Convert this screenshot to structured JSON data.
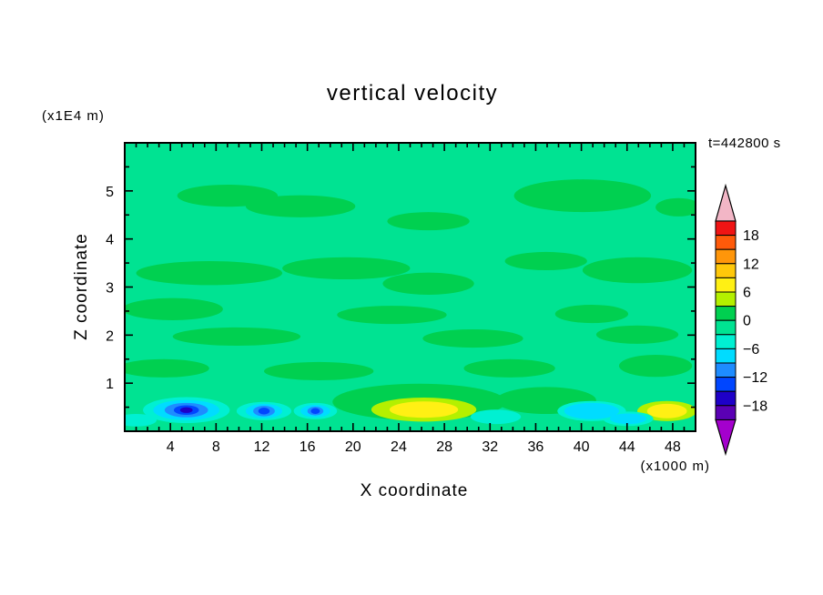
{
  "page": {
    "background": "#ffffff"
  },
  "chart_data": {
    "type": "contour",
    "title": "vertical velocity",
    "timestamp_label": "t=442800 s",
    "xlabel": "X coordinate",
    "x_unit_label": "(x1000 m)",
    "ylabel": "Z coordinate",
    "y_unit_label": "(x1E4 m)",
    "xlim": [
      0,
      50
    ],
    "ylim": [
      0,
      6
    ],
    "x_ticks": [
      4,
      8,
      12,
      16,
      20,
      24,
      28,
      32,
      36,
      40,
      44,
      48
    ],
    "x_minor_step": 1,
    "y_ticks": [
      1,
      2,
      3,
      4,
      5
    ],
    "y_minor_step": 0.5,
    "grid": false,
    "legend_position": "right-colorbar",
    "background_band_min": -3,
    "colorbar": {
      "labels": [
        18,
        12,
        6,
        0,
        -6,
        -12,
        -18
      ],
      "band_size": 3,
      "range": [
        -21,
        21
      ],
      "over_color": "#f2b6c6",
      "under_color": "#a400cd",
      "bands": [
        {
          "min": 18,
          "max": 21,
          "color": "#f01414"
        },
        {
          "min": 15,
          "max": 18,
          "color": "#ff5a0a"
        },
        {
          "min": 12,
          "max": 15,
          "color": "#ff960a"
        },
        {
          "min": 9,
          "max": 12,
          "color": "#ffc80a"
        },
        {
          "min": 6,
          "max": 9,
          "color": "#fff014"
        },
        {
          "min": 3,
          "max": 6,
          "color": "#b4f000"
        },
        {
          "min": 0,
          "max": 3,
          "color": "#00d050"
        },
        {
          "min": -3,
          "max": 0,
          "color": "#00e392"
        },
        {
          "min": -6,
          "max": -3,
          "color": "#00f0d2"
        },
        {
          "min": -9,
          "max": -6,
          "color": "#00dcff"
        },
        {
          "min": -12,
          "max": -9,
          "color": "#1e8cff"
        },
        {
          "min": -15,
          "max": -12,
          "color": "#0046ff"
        },
        {
          "min": -18,
          "max": -15,
          "color": "#1e00c8"
        },
        {
          "min": -21,
          "max": -18,
          "color": "#5a00b4"
        }
      ]
    },
    "features": [
      {
        "x": 9.0,
        "z": 4.9,
        "rx": 4.4,
        "ry": 0.23,
        "band_min": 0
      },
      {
        "x": 15.4,
        "z": 4.68,
        "rx": 4.8,
        "ry": 0.23,
        "band_min": 0
      },
      {
        "x": 26.6,
        "z": 4.37,
        "rx": 3.6,
        "ry": 0.19,
        "band_min": 0
      },
      {
        "x": 40.1,
        "z": 4.9,
        "rx": 6.0,
        "ry": 0.34,
        "band_min": 0
      },
      {
        "x": 48.5,
        "z": 4.66,
        "rx": 2.0,
        "ry": 0.19,
        "band_min": 0
      },
      {
        "x": 7.4,
        "z": 3.29,
        "rx": 6.4,
        "ry": 0.25,
        "band_min": 0
      },
      {
        "x": 19.4,
        "z": 3.39,
        "rx": 5.6,
        "ry": 0.23,
        "band_min": 0
      },
      {
        "x": 26.6,
        "z": 3.07,
        "rx": 4.0,
        "ry": 0.23,
        "band_min": 0
      },
      {
        "x": 36.9,
        "z": 3.54,
        "rx": 3.6,
        "ry": 0.19,
        "band_min": 0
      },
      {
        "x": 44.9,
        "z": 3.35,
        "rx": 4.8,
        "ry": 0.27,
        "band_min": 0
      },
      {
        "x": 4.2,
        "z": 2.54,
        "rx": 4.4,
        "ry": 0.23,
        "band_min": 0
      },
      {
        "x": 23.4,
        "z": 2.42,
        "rx": 4.8,
        "ry": 0.19,
        "band_min": 0
      },
      {
        "x": 40.9,
        "z": 2.44,
        "rx": 3.2,
        "ry": 0.19,
        "band_min": 0
      },
      {
        "x": 9.8,
        "z": 1.97,
        "rx": 5.6,
        "ry": 0.19,
        "band_min": 0
      },
      {
        "x": 30.5,
        "z": 1.93,
        "rx": 4.4,
        "ry": 0.19,
        "band_min": 0
      },
      {
        "x": 44.9,
        "z": 2.01,
        "rx": 3.6,
        "ry": 0.19,
        "band_min": 0
      },
      {
        "x": 3.4,
        "z": 1.31,
        "rx": 4.0,
        "ry": 0.19,
        "band_min": 0
      },
      {
        "x": 17.0,
        "z": 1.25,
        "rx": 4.8,
        "ry": 0.19,
        "band_min": 0
      },
      {
        "x": 33.7,
        "z": 1.31,
        "rx": 4.0,
        "ry": 0.19,
        "band_min": 0
      },
      {
        "x": 46.5,
        "z": 1.36,
        "rx": 3.2,
        "ry": 0.23,
        "band_min": 0
      },
      {
        "x": 25.8,
        "z": 0.61,
        "rx": 7.6,
        "ry": 0.38,
        "band_min": 0
      },
      {
        "x": 36.9,
        "z": 0.64,
        "rx": 4.4,
        "ry": 0.28,
        "band_min": 0
      },
      {
        "x": 26.2,
        "z": 0.45,
        "rx": 4.6,
        "ry": 0.25,
        "band_min": 3
      },
      {
        "x": 47.5,
        "z": 0.42,
        "rx": 2.6,
        "ry": 0.21,
        "band_min": 3
      },
      {
        "x": 26.2,
        "z": 0.45,
        "rx": 3.0,
        "ry": 0.17,
        "band_min": 6
      },
      {
        "x": 47.5,
        "z": 0.42,
        "rx": 1.75,
        "ry": 0.15,
        "band_min": 6
      },
      {
        "x": 5.4,
        "z": 0.44,
        "rx": 3.8,
        "ry": 0.27,
        "band_min": -6
      },
      {
        "x": 12.2,
        "z": 0.42,
        "rx": 2.4,
        "ry": 0.19,
        "band_min": -6
      },
      {
        "x": 16.7,
        "z": 0.42,
        "rx": 1.9,
        "ry": 0.17,
        "band_min": -6
      },
      {
        "x": 32.5,
        "z": 0.3,
        "rx": 2.2,
        "ry": 0.15,
        "band_min": -6
      },
      {
        "x": 40.9,
        "z": 0.42,
        "rx": 3.0,
        "ry": 0.21,
        "band_min": -6
      },
      {
        "x": 44.1,
        "z": 0.26,
        "rx": 2.2,
        "ry": 0.15,
        "band_min": -6
      },
      {
        "x": 1.0,
        "z": 0.23,
        "rx": 1.8,
        "ry": 0.13,
        "band_min": -6
      },
      {
        "x": 5.4,
        "z": 0.44,
        "rx": 2.9,
        "ry": 0.21,
        "band_min": -9
      },
      {
        "x": 12.2,
        "z": 0.42,
        "rx": 1.6,
        "ry": 0.15,
        "band_min": -9
      },
      {
        "x": 16.7,
        "z": 0.42,
        "rx": 1.3,
        "ry": 0.13,
        "band_min": -9
      },
      {
        "x": 40.9,
        "z": 0.42,
        "rx": 2.4,
        "ry": 0.17,
        "band_min": -9
      },
      {
        "x": 44.1,
        "z": 0.26,
        "rx": 1.6,
        "ry": 0.11,
        "band_min": -9
      },
      {
        "x": 5.4,
        "z": 0.44,
        "rx": 1.9,
        "ry": 0.15,
        "band_min": -12
      },
      {
        "x": 12.2,
        "z": 0.42,
        "rx": 0.95,
        "ry": 0.11,
        "band_min": -12
      },
      {
        "x": 16.7,
        "z": 0.42,
        "rx": 0.7,
        "ry": 0.09,
        "band_min": -12
      },
      {
        "x": 5.4,
        "z": 0.44,
        "rx": 1.1,
        "ry": 0.1,
        "band_min": -15
      },
      {
        "x": 12.2,
        "z": 0.42,
        "rx": 0.5,
        "ry": 0.07,
        "band_min": -15
      },
      {
        "x": 16.7,
        "z": 0.42,
        "rx": 0.4,
        "ry": 0.06,
        "band_min": -15
      },
      {
        "x": 5.4,
        "z": 0.44,
        "rx": 0.55,
        "ry": 0.06,
        "band_min": -18
      }
    ]
  }
}
